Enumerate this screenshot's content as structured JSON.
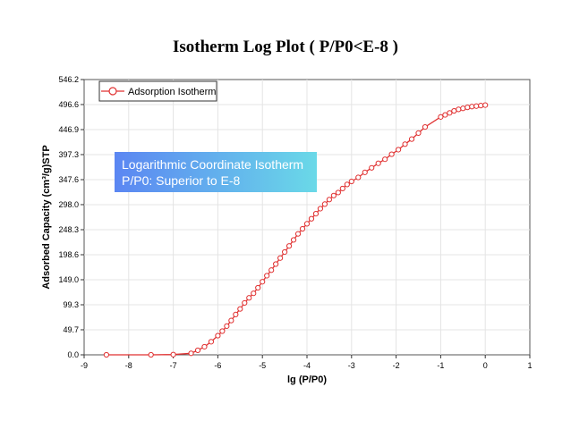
{
  "chart_data": {
    "type": "line",
    "title": "Isotherm Log Plot ( P/P0<E-8 )",
    "xlabel": "lg (P/P0)",
    "ylabel": "Adsorbed Capacity (cm³/g)STP",
    "xlim": [
      -9,
      1
    ],
    "ylim": [
      0,
      546.2
    ],
    "x_ticks": [
      -9,
      -8,
      -7,
      -6,
      -5,
      -4,
      -3,
      -2,
      -1,
      0,
      1
    ],
    "y_ticks": [
      0.0,
      49.7,
      99.3,
      149.0,
      198.6,
      248.3,
      298.0,
      347.6,
      397.3,
      446.9,
      496.6,
      546.2
    ],
    "x_tick_labels": [
      "-9",
      "-8",
      "-7",
      "-6",
      "-5",
      "-4",
      "-3",
      "-2",
      "-1",
      "0",
      "1"
    ],
    "y_tick_labels": [
      "0.0",
      "49.7",
      "99.3",
      "149.0",
      "198.6",
      "248.3",
      "298.0",
      "347.6",
      "397.3",
      "446.9",
      "496.6",
      "546.2"
    ],
    "grid": true,
    "legend": "top-left",
    "color": "#e03030",
    "annotation": [
      "Logarithmic Coordinate Isotherm",
      "P/P0: Superior to E-8"
    ],
    "series": [
      {
        "name": "Adsorption Isotherm",
        "x": [
          -8.5,
          -7.5,
          -7.0,
          -6.6,
          -6.45,
          -6.3,
          -6.15,
          -6.0,
          -5.9,
          -5.8,
          -5.7,
          -5.6,
          -5.5,
          -5.4,
          -5.3,
          -5.2,
          -5.1,
          -5.0,
          -4.9,
          -4.8,
          -4.7,
          -4.6,
          -4.5,
          -4.4,
          -4.3,
          -4.2,
          -4.1,
          -4.0,
          -3.9,
          -3.8,
          -3.7,
          -3.6,
          -3.5,
          -3.4,
          -3.3,
          -3.2,
          -3.1,
          -3.0,
          -2.85,
          -2.7,
          -2.55,
          -2.4,
          -2.25,
          -2.1,
          -1.95,
          -1.8,
          -1.65,
          -1.5,
          -1.35,
          -1.0,
          -0.9,
          -0.8,
          -0.7,
          -0.6,
          -0.5,
          -0.4,
          -0.3,
          -0.2,
          -0.1,
          0.0
        ],
        "y": [
          0.0,
          0.0,
          0.5,
          3.0,
          9.0,
          16.0,
          26.0,
          38.0,
          47.0,
          57.0,
          68.0,
          80.0,
          91.0,
          103.0,
          113.0,
          122.0,
          133.0,
          145.0,
          157.0,
          168.0,
          180.0,
          192.0,
          204.0,
          216.0,
          228.0,
          240.0,
          250.0,
          260.0,
          270.0,
          280.0,
          290.0,
          299.0,
          308.0,
          316.0,
          322.0,
          330.0,
          338.0,
          344.0,
          352.0,
          362.0,
          371.0,
          380.0,
          388.0,
          398.0,
          407.0,
          418.0,
          428.0,
          440.0,
          452.0,
          472.0,
          476.0,
          480.0,
          484.0,
          487.0,
          489.0,
          491.0,
          492.5,
          493.5,
          494.5,
          495.5
        ]
      }
    ]
  }
}
